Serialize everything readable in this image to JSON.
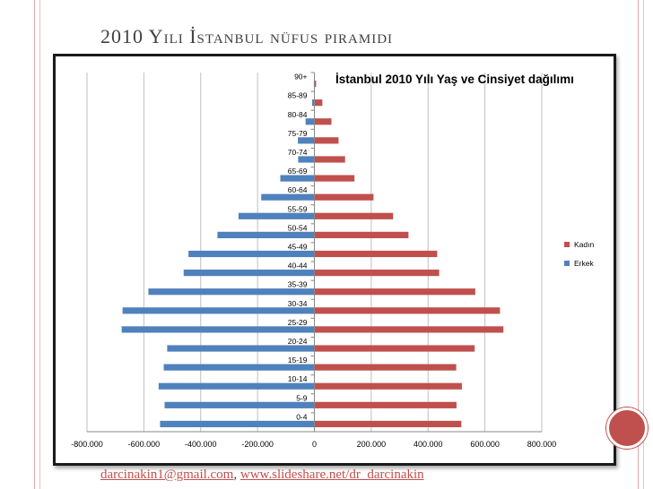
{
  "slide": {
    "title": "2010 Yılı İstanbul nüfus piramidı",
    "footer_email": "darcinakin1@gmail.com",
    "footer_sep": ", ",
    "footer_url": "www.slideshare.net/dr_darcinakin"
  },
  "colors": {
    "accent": "#c0504d",
    "kadin": "#c0504d",
    "erkek": "#4f81bd"
  },
  "chart_data": {
    "type": "bar",
    "orientation": "horizontal",
    "title": "İstanbul 2010 Yılı Yaş ve Cinsiyet dağılımı",
    "categories": [
      "0-4",
      "5-9",
      "10-14",
      "15-19",
      "20-24",
      "25-29",
      "30-34",
      "35-39",
      "40-44",
      "45-49",
      "50-54",
      "55-59",
      "60-64",
      "65-69",
      "70-74",
      "75-79",
      "80-84",
      "85-89",
      "90+"
    ],
    "series": [
      {
        "name": "Kadın",
        "color": "#c0504d",
        "values": [
          517000,
          500000,
          519000,
          499000,
          564000,
          665000,
          653000,
          566000,
          439000,
          432000,
          331000,
          277000,
          208000,
          141000,
          108000,
          85000,
          60000,
          28000,
          6000
        ]
      },
      {
        "name": "Erkek",
        "color": "#4f81bd",
        "values": [
          -543000,
          -527000,
          -548000,
          -530000,
          -518000,
          -678000,
          -675000,
          -584000,
          -460000,
          -443000,
          -341000,
          -267000,
          -187000,
          -120000,
          -57000,
          -58000,
          -31000,
          -8000,
          -2000
        ]
      }
    ],
    "xlim": [
      -800000,
      800000
    ],
    "xticks": [
      "-800.000",
      "-600.000",
      "-400.000",
      "-200.000",
      "0",
      "200.000",
      "400.000",
      "600.000",
      "800.000"
    ],
    "grid": "vertical",
    "legend": "right"
  }
}
